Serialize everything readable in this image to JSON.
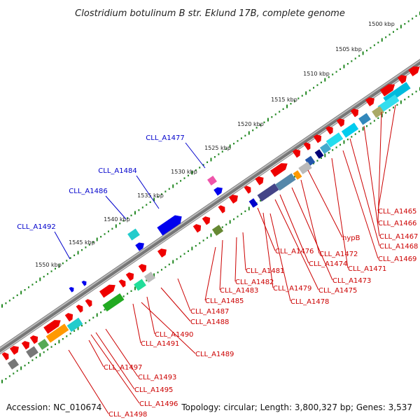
{
  "title": "Clostridium botulinum B str. Eklund 17B, complete genome",
  "footer": {
    "accession": "Accession: NC_010674",
    "summary": "Topology: circular; Length: 3,800,327 bp; Genes: 3,537"
  },
  "kbp_marks": [
    "1500 kbp",
    "1505 kbp",
    "1510 kbp",
    "1515 kbp",
    "1520 kbp",
    "1525 kbp",
    "1530 kbp",
    "1535 kbp",
    "1540 kbp",
    "1545 kbp",
    "1550 kbp"
  ],
  "outer_labels": [
    "CLL_A1477",
    "CLL_A1484",
    "CLL_A1486",
    "CLL_A1492"
  ],
  "inner_labels": [
    "CLL_A1465",
    "CLL_A1466",
    "CLL_A1467",
    "CLL_A1468",
    "CLL_A1469",
    "CLL_A1471",
    "hypB",
    "CLL_A1472",
    "CLL_A1473",
    "CLL_A1474",
    "CLL_A1475",
    "CLL_A1476",
    "CLL_A1478",
    "CLL_A1479",
    "CLL_A1481",
    "CLL_A1482",
    "CLL_A1483",
    "CLL_A1485",
    "CLL_A1487",
    "CLL_A1488",
    "CLL_A1489",
    "CLL_A1490",
    "CLL_A1491",
    "CLL_A1493",
    "CLL_A1495",
    "CLL_A1496",
    "CLL_A1497",
    "CLL_A1498"
  ],
  "colors": {
    "backbone": "#888888",
    "forward_gene": "#ee0000",
    "outer_gene": "#0000ee",
    "outer_label": "#0000cc",
    "inner_label": "#cc0000",
    "tick": "#228822"
  }
}
